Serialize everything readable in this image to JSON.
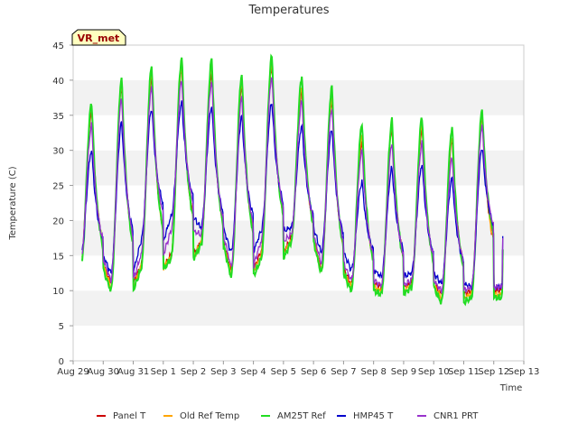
{
  "chart_data": {
    "type": "line",
    "title": "Temperatures",
    "xlabel": "Time",
    "ylabel": "Temperature (C)",
    "badge": "VR_met",
    "ylim": [
      0,
      45
    ],
    "yticks": [
      0,
      5,
      10,
      15,
      20,
      25,
      30,
      35,
      40,
      45
    ],
    "xlim": [
      0,
      15
    ],
    "xtick_labels": [
      "Aug 29",
      "Aug 30",
      "Aug 31",
      "Sep 1",
      "Sep 2",
      "Sep 3",
      "Sep 4",
      "Sep 5",
      "Sep 6",
      "Sep 7",
      "Sep 8",
      "Sep 9",
      "Sep 10",
      "Sep 11",
      "Sep 12",
      "Sep 13"
    ],
    "grid": "horizontal alternating bands",
    "legend_position": "bottom",
    "colors": {
      "Panel T": "#cc0000",
      "Old Ref Temp": "#ffa500",
      "AM25T Ref": "#22dd22",
      "HMP45 T": "#0000cc",
      "CNR1 PRT": "#9933cc"
    },
    "series": [
      {
        "name": "Panel T",
        "daily_min": [
          14.0,
          11.0,
          13.5,
          15.0,
          17.0,
          13.0,
          15.5,
          17.5,
          13.0,
          11.0,
          10.5,
          11.0,
          9.5,
          10.0
        ],
        "daily_max": [
          35.5,
          39.0,
          40.5,
          41.5,
          41.0,
          39.0,
          42.0,
          38.5,
          37.0,
          31.0,
          33.0,
          33.0,
          31.5,
          35.0
        ],
        "start": 16.0,
        "end": 15.0
      },
      {
        "name": "Old Ref Temp",
        "daily_min": [
          13.8,
          10.5,
          13.3,
          14.8,
          16.8,
          12.5,
          15.0,
          17.2,
          12.8,
          10.5,
          10.0,
          10.8,
          9.0,
          9.5
        ],
        "daily_max": [
          36.0,
          39.5,
          41.0,
          42.0,
          42.0,
          39.5,
          42.5,
          39.0,
          37.5,
          32.0,
          33.5,
          33.5,
          32.0,
          35.0
        ],
        "start": 15.8,
        "end": 14.8
      },
      {
        "name": "AM25T Ref",
        "daily_min": [
          13.0,
          10.0,
          13.0,
          14.5,
          16.5,
          12.0,
          14.5,
          17.0,
          12.5,
          10.0,
          9.5,
          10.5,
          8.3,
          9.0
        ],
        "daily_max": [
          36.8,
          40.3,
          42.0,
          43.2,
          43.0,
          40.8,
          43.5,
          40.6,
          39.0,
          33.8,
          34.3,
          34.8,
          33.2,
          35.8
        ],
        "start": 15.2,
        "end": 16.0
      },
      {
        "name": "HMP45 T",
        "daily_min": [
          15.0,
          12.5,
          17.0,
          20.5,
          19.0,
          15.5,
          18.5,
          19.0,
          15.5,
          13.0,
          12.0,
          12.5,
          11.0,
          10.5
        ],
        "daily_max": [
          30.0,
          34.0,
          36.0,
          36.8,
          36.3,
          34.8,
          36.8,
          33.5,
          33.0,
          25.5,
          27.5,
          28.0,
          26.0,
          30.5
        ],
        "start": 17.2,
        "end": 18.0
      },
      {
        "name": "CNR1 PRT",
        "daily_min": [
          14.5,
          11.5,
          15.0,
          18.5,
          18.0,
          13.5,
          17.0,
          18.0,
          14.0,
          11.5,
          10.8,
          11.5,
          10.0,
          10.5
        ],
        "daily_max": [
          33.5,
          37.5,
          39.0,
          40.0,
          39.8,
          37.5,
          40.5,
          37.0,
          36.0,
          30.0,
          31.0,
          31.0,
          29.0,
          33.5
        ],
        "start": 15.5,
        "end": 17.5
      }
    ]
  }
}
